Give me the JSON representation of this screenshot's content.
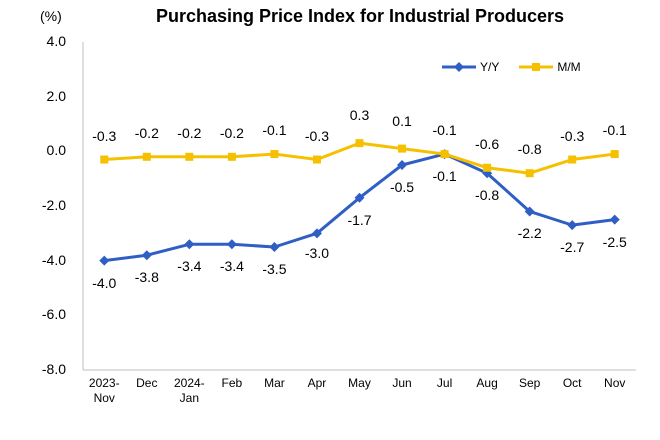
{
  "chart_data": {
    "type": "line",
    "title": "Purchasing Price Index for Industrial Producers",
    "unit_label": "(%)",
    "categories": [
      "2023-\nNov",
      "Dec",
      "2024-\nJan",
      "Feb",
      "Mar",
      "Apr",
      "May",
      "Jun",
      "Jul",
      "Aug",
      "Sep",
      "Oct",
      "Nov"
    ],
    "y_ticks": [
      "4.0",
      "2.0",
      "0.0",
      "-2.0",
      "-4.0",
      "-6.0",
      "-8.0"
    ],
    "ylim": [
      -8,
      4
    ],
    "grid": false,
    "legend_position": "top-right",
    "series": [
      {
        "name": "Y/Y",
        "color": "#2f5fc4",
        "marker": "diamond",
        "values": [
          -4.0,
          -3.8,
          -3.4,
          -3.4,
          -3.5,
          -3.0,
          -1.7,
          -0.5,
          -0.1,
          -0.8,
          -2.2,
          -2.7,
          -2.5
        ],
        "labels": [
          "-4.0",
          "-3.8",
          "-3.4",
          "-3.4",
          "-3.5",
          "-3.0",
          "-1.7",
          "-0.5",
          "-0.1",
          "-0.8",
          "-2.2",
          "-2.7",
          "-2.5"
        ]
      },
      {
        "name": "M/M",
        "color": "#f5c000",
        "marker": "square",
        "values": [
          -0.3,
          -0.2,
          -0.2,
          -0.2,
          -0.1,
          -0.3,
          0.3,
          0.1,
          -0.1,
          -0.6,
          -0.8,
          -0.3,
          -0.1
        ],
        "labels": [
          "-0.3",
          "-0.2",
          "-0.2",
          "-0.2",
          "-0.1",
          "-0.3",
          "0.3",
          "0.1",
          "-0.1",
          "-0.6",
          "-0.8",
          "-0.3",
          "-0.1"
        ]
      }
    ]
  }
}
